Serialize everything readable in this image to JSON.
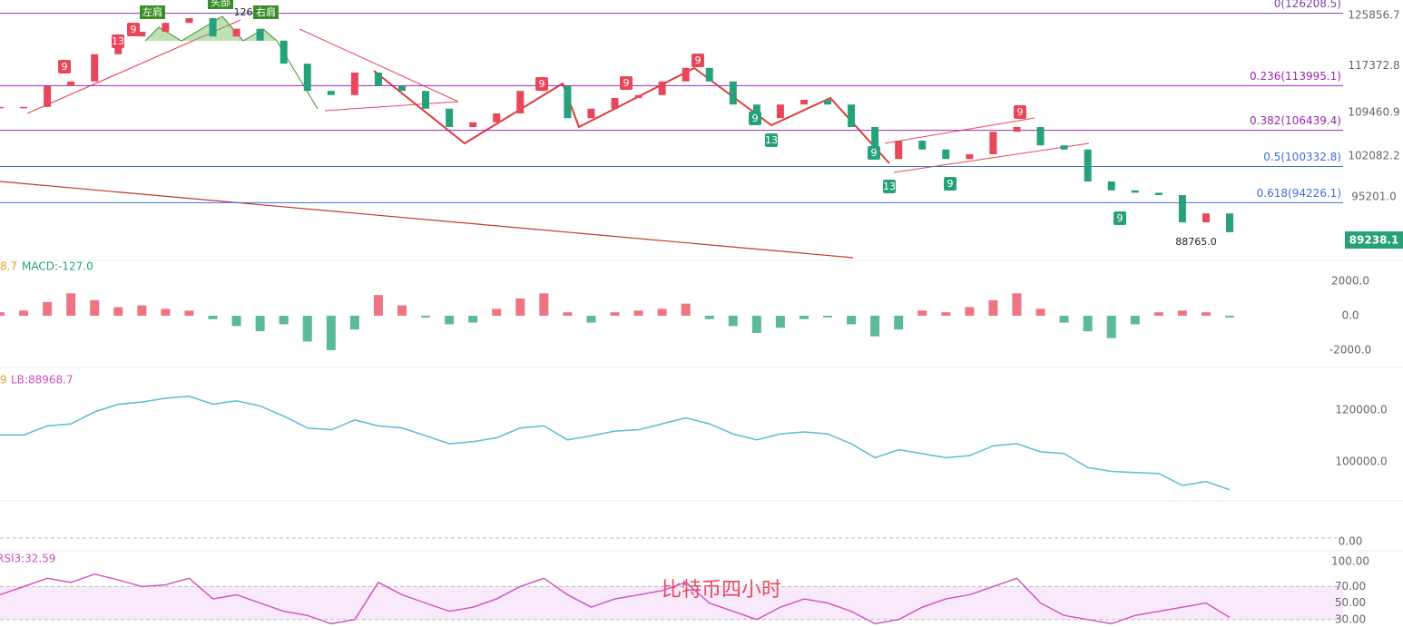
{
  "chart_data": {
    "type": "candlestick",
    "watermark": "比特币四小时",
    "series": [
      {
        "name": "close",
        "values": [
          110400,
          110400,
          113900,
          114700,
          119300,
          122300,
          123100,
          124600,
          125400,
          122300,
          123600,
          121600,
          117700,
          113100,
          112400,
          116200,
          113900,
          113100,
          110100,
          107000,
          107800,
          109300,
          113100,
          113900,
          108500,
          110100,
          111900,
          112400,
          114700,
          117000,
          114700,
          110800,
          108500,
          110800,
          111600,
          110800,
          107000,
          101600,
          104700,
          103200,
          101600,
          102400,
          106200,
          107000,
          103900,
          103200,
          97800,
          96300,
          95900,
          95500,
          90900,
          92400,
          89238.1
        ]
      }
    ],
    "up_color": "#e8465a",
    "down_color": "#26a17b",
    "ylim": [
      84770,
      128460
    ],
    "yticks": [
      125856.7,
      117372.8,
      109460.9,
      102082.2,
      {
        "value": 95201,
        "label": "95201.0"
      }
    ],
    "fib": [
      {
        "label": "0(126208.5)",
        "value": 126208.5
      },
      {
        "label": "0.236(113995.1)",
        "value": 113995.1
      },
      {
        "label": "0.382(106439.4)",
        "value": 106439.4
      },
      {
        "label": "0.5(100332.8)",
        "value": 100332.8
      },
      {
        "label": "0.618(94226.1)",
        "value": 94226.1
      }
    ],
    "annotations": [
      "左肩",
      "头部",
      "126",
      "右肩",
      "88765.0"
    ],
    "td_marks": [
      "9",
      "13",
      "9",
      "9",
      "9",
      "9",
      "9",
      "13",
      "9",
      "13",
      "9",
      "9",
      "9"
    ],
    "macd": {
      "labels": [
        "8.7",
        "MACD:-127.0"
      ],
      "values": [
        200,
        300,
        800,
        1300,
        900,
        500,
        600,
        400,
        300,
        -200,
        -600,
        -900,
        -500,
        -1500,
        -2000,
        -800,
        1200,
        600,
        -100,
        -500,
        -400,
        400,
        1000,
        1300,
        200,
        -400,
        200,
        300,
        400,
        700,
        -200,
        -600,
        -1000,
        -700,
        -200,
        -100,
        -500,
        -1200,
        -800,
        300,
        200,
        500,
        900,
        1300,
        400,
        -400,
        -900,
        -1300,
        -500,
        200,
        300,
        200,
        -100
      ],
      "ylim": [
        -2740,
        3050
      ],
      "yticks": [
        {
          "value": 2000,
          "label": "2000.0"
        },
        {
          "value": 0,
          "label": "0.0"
        },
        {
          "value": -2000,
          "label": "-2000.0"
        }
      ]
    },
    "boll": {
      "labels": [
        "9",
        "LB:88968.7"
      ],
      "ylim": [
        87370,
        134740
      ],
      "yticks": [
        {
          "value": 120000,
          "label": "120000.0"
        },
        {
          "value": 100000,
          "label": "100000.0"
        }
      ]
    },
    "kdj": {
      "ylim": [
        -20,
        92
      ],
      "yticks": [
        {
          "value": 0,
          "label": "0.00"
        }
      ]
    },
    "rsi": {
      "label": "RSI3:32.59",
      "values": [
        60,
        70,
        80,
        75,
        85,
        78,
        70,
        72,
        80,
        55,
        60,
        50,
        40,
        35,
        25,
        30,
        75,
        60,
        50,
        40,
        45,
        55,
        70,
        80,
        60,
        45,
        55,
        60,
        65,
        75,
        50,
        40,
        30,
        45,
        55,
        50,
        40,
        25,
        30,
        45,
        55,
        60,
        70,
        80,
        50,
        35,
        30,
        25,
        35,
        40,
        45,
        50,
        32.59
      ],
      "ylim": [
        21,
        110
      ],
      "yticks": [
        {
          "value": 100,
          "label": "100.00"
        },
        {
          "value": 70,
          "label": "70.00"
        },
        {
          "value": 50,
          "label": "50.00"
        },
        {
          "value": 30,
          "label": "30.00"
        }
      ]
    }
  }
}
